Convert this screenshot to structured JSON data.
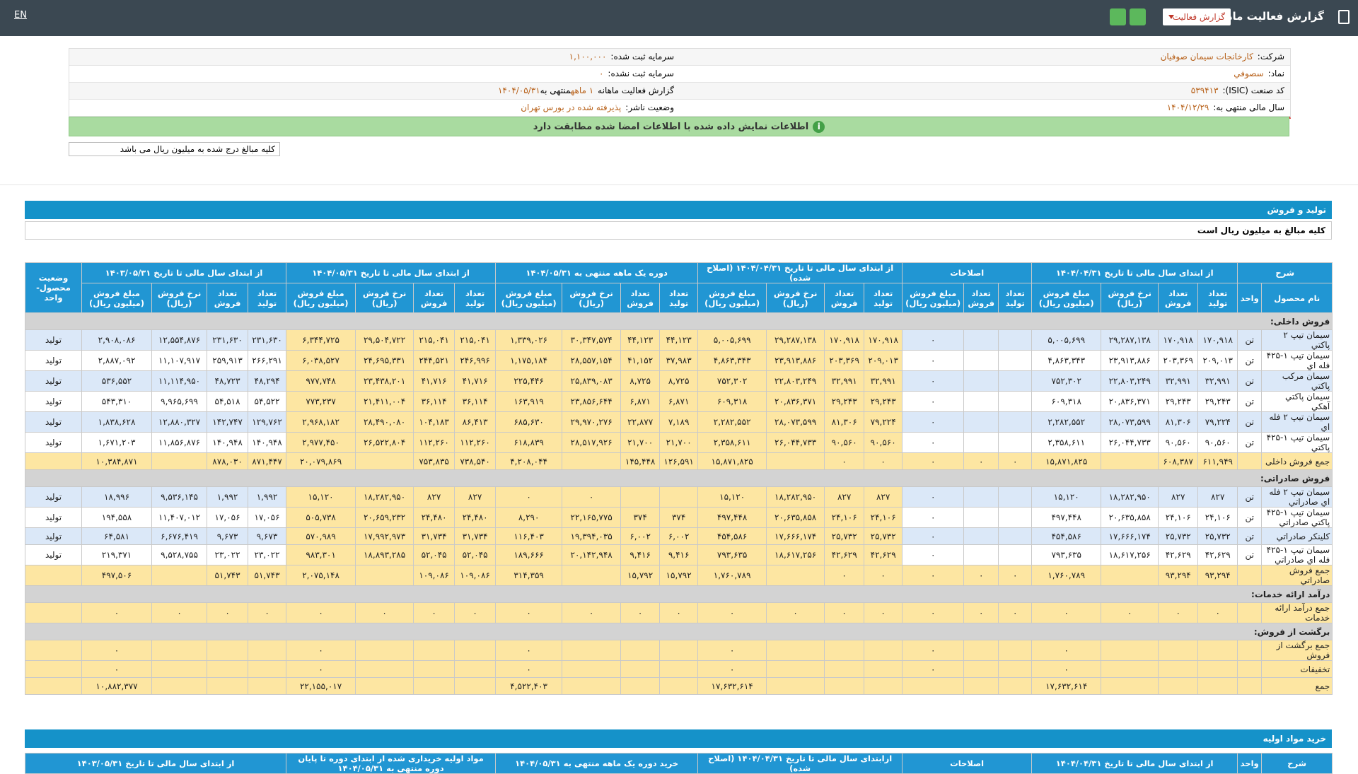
{
  "header": {
    "title": "گزارش فعالیت ماهانه",
    "dropdown": "گزارش فعالیت",
    "language": "EN"
  },
  "info": {
    "company_label": "شرکت:",
    "company": "کارخانجات سیمان صوفیان",
    "capital_label": "سرمایه ثبت شده:",
    "capital": "۱,۱۰۰,۰۰۰",
    "symbol_label": "نماد:",
    "symbol": "سصوفي",
    "unregistered_label": "سرمایه ثبت نشده:",
    "unregistered": "۰",
    "isic_label": "کد صنعت (ISIC):",
    "isic": "۵۳۹۴۱۳",
    "report_label": "گزارش فعالیت ماهانه",
    "report_period": "۱ ماهه",
    "ending_label": "منتهی به",
    "report_date": "۱۴۰۴/۰۵/۳۱",
    "fiscal_label": "سال مالی منتهی به:",
    "fiscal_end": "۱۴۰۴/۱۲/۲۹",
    "status_label": "وضعیت ناشر:",
    "status": "پذیرفته شده در بورس تهران"
  },
  "notice": "اطلاعات نمایش داده شده با اطلاعات امضا شده مطابقت دارد",
  "unit_note": "کلیه مبالغ درج شده به میلیون ریال می باشد",
  "sales": {
    "title": "تولید و فروش",
    "subtitle": "کلیه مبالغ به میلیون ریال است",
    "head_top": [
      "شرح",
      "از ابتدای سال مالی تا تاریخ ۱۴۰۴/۰۴/۳۱",
      "اصلاحات",
      "از ابتدای سال مالی تا تاریخ ۱۴۰۴/۰۴/۳۱ (اصلاح شده)",
      "دوره یک ماهه منتهی به ۱۴۰۴/۰۵/۳۱",
      "از ابتدای سال مالی تا تاریخ ۱۴۰۴/۰۵/۳۱",
      "از ابتدای سال مالی تا تاریخ ۱۴۰۳/۰۵/۳۱",
      "وضعیت محصول-واحد"
    ],
    "head_sub": [
      "نام محصول",
      "واحد",
      "تعداد تولید",
      "تعداد فروش",
      "نرخ فروش (ریال)",
      "مبلغ فروش (میلیون ریال)",
      "تعداد تولید",
      "تعداد فروش",
      "مبلغ فروش (میلیون ریال)",
      "تعداد تولید",
      "تعداد فروش",
      "نرخ فروش (ریال)",
      "مبلغ فروش (میلیون ریال)",
      "تعداد تولید",
      "تعداد فروش",
      "نرخ فروش (ریال)",
      "مبلغ فروش (میلیون ریال)",
      "تعداد تولید",
      "تعداد فروش",
      "نرخ فروش (ریال)",
      "مبلغ فروش (میلیون ریال)",
      "تعداد تولید",
      "تعداد فروش",
      "نرخ فروش (ریال)",
      "مبلغ فروش (میلیون ریال)"
    ],
    "rows": [
      {
        "section": "فروش داخلی:"
      },
      {
        "cells": [
          "سیمان تیپ ۲ پاکتي",
          "تن",
          "۱۷۰,۹۱۸",
          "۱۷۰,۹۱۸",
          "۲۹,۲۸۷,۱۳۸",
          "۵,۰۰۵,۶۹۹",
          null,
          null,
          "۰",
          "۱۷۰,۹۱۸",
          "۱۷۰,۹۱۸",
          "۲۹,۲۸۷,۱۳۸",
          "۵,۰۰۵,۶۹۹",
          "۴۴,۱۲۳",
          "۴۴,۱۲۳",
          "۳۰,۳۴۷,۵۷۴",
          "۱,۳۳۹,۰۲۶",
          "۲۱۵,۰۴۱",
          "۲۱۵,۰۴۱",
          "۲۹,۵۰۴,۷۲۲",
          "۶,۳۴۴,۷۲۵",
          "۲۳۱,۶۳۰",
          "۲۳۱,۶۳۰",
          "۱۲,۵۵۴,۸۷۶",
          "۲,۹۰۸,۰۸۶",
          "تولید"
        ]
      },
      {
        "cells": [
          "سیمان تیپ ۱-۴۲۵ فله اي",
          "تن",
          "۲۰۹,۰۱۳",
          "۲۰۳,۳۶۹",
          "۲۳,۹۱۳,۸۸۶",
          "۴,۸۶۳,۳۴۳",
          null,
          null,
          "۰",
          "۲۰۹,۰۱۳",
          "۲۰۳,۳۶۹",
          "۲۳,۹۱۳,۸۸۶",
          "۴,۸۶۳,۳۴۳",
          "۳۷,۹۸۳",
          "۴۱,۱۵۲",
          "۲۸,۵۵۷,۱۵۴",
          "۱,۱۷۵,۱۸۴",
          "۲۴۶,۹۹۶",
          "۲۴۴,۵۲۱",
          "۲۴,۶۹۵,۳۳۱",
          "۶,۰۳۸,۵۲۷",
          "۲۶۶,۲۹۱",
          "۲۵۹,۹۱۳",
          "۱۱,۱۰۷,۹۱۷",
          "۲,۸۸۷,۰۹۲",
          "تولید"
        ]
      },
      {
        "cells": [
          "سیمان مرکب پاکتي",
          "تن",
          "۳۲,۹۹۱",
          "۳۲,۹۹۱",
          "۲۲,۸۰۳,۲۴۹",
          "۷۵۲,۳۰۲",
          null,
          null,
          "۰",
          "۳۲,۹۹۱",
          "۳۲,۹۹۱",
          "۲۲,۸۰۳,۲۴۹",
          "۷۵۲,۳۰۲",
          "۸,۷۲۵",
          "۸,۷۲۵",
          "۲۵,۸۳۹,۰۸۳",
          "۲۲۵,۴۴۶",
          "۴۱,۷۱۶",
          "۴۱,۷۱۶",
          "۲۳,۴۳۸,۲۰۱",
          "۹۷۷,۷۴۸",
          "۴۸,۲۹۴",
          "۴۸,۷۲۳",
          "۱۱,۱۱۴,۹۵۰",
          "۵۳۶,۵۵۲",
          "تولید"
        ]
      },
      {
        "cells": [
          "سیمان پاکتي آهکي",
          "تن",
          "۲۹,۲۴۳",
          "۲۹,۲۴۳",
          "۲۰,۸۳۶,۳۷۱",
          "۶۰۹,۳۱۸",
          null,
          null,
          "۰",
          "۲۹,۲۴۳",
          "۲۹,۲۴۳",
          "۲۰,۸۳۶,۳۷۱",
          "۶۰۹,۳۱۸",
          "۶,۸۷۱",
          "۶,۸۷۱",
          "۲۳,۸۵۶,۶۴۴",
          "۱۶۳,۹۱۹",
          "۳۶,۱۱۴",
          "۳۶,۱۱۴",
          "۲۱,۴۱۱,۰۰۴",
          "۷۷۳,۲۳۷",
          "۵۴,۵۲۲",
          "۵۴,۵۱۸",
          "۹,۹۶۵,۶۹۹",
          "۵۴۳,۳۱۰",
          "تولید"
        ]
      },
      {
        "cells": [
          "سیمان تیپ ۲ فله اي",
          "تن",
          "۷۹,۲۲۴",
          "۸۱,۳۰۶",
          "۲۸,۰۷۳,۵۹۹",
          "۲,۲۸۲,۵۵۲",
          null,
          null,
          "۰",
          "۷۹,۲۲۴",
          "۸۱,۳۰۶",
          "۲۸,۰۷۳,۵۹۹",
          "۲,۲۸۲,۵۵۲",
          "۷,۱۸۹",
          "۲۲,۸۷۷",
          "۲۹,۹۷۰,۲۷۶",
          "۶۸۵,۶۳۰",
          "۸۶,۴۱۳",
          "۱۰۴,۱۸۳",
          "۲۸,۴۹۰,۰۸۰",
          "۲,۹۶۸,۱۸۲",
          "۱۲۹,۷۶۲",
          "۱۴۲,۷۴۷",
          "۱۲,۸۸۰,۳۲۷",
          "۱,۸۳۸,۶۲۸",
          "تولید"
        ]
      },
      {
        "cells": [
          "سیمان تیپ ۱-۴۲۵ پاکتي",
          "تن",
          "۹۰,۵۶۰",
          "۹۰,۵۶۰",
          "۲۶,۰۴۴,۷۳۳",
          "۲,۳۵۸,۶۱۱",
          null,
          null,
          "۰",
          "۹۰,۵۶۰",
          "۹۰,۵۶۰",
          "۲۶,۰۴۴,۷۳۳",
          "۲,۳۵۸,۶۱۱",
          "۲۱,۷۰۰",
          "۲۱,۷۰۰",
          "۲۸,۵۱۷,۹۲۶",
          "۶۱۸,۸۳۹",
          "۱۱۲,۲۶۰",
          "۱۱۲,۲۶۰",
          "۲۶,۵۲۲,۸۰۴",
          "۲,۹۷۷,۴۵۰",
          "۱۴۰,۹۴۸",
          "۱۴۰,۹۴۸",
          "۱۱,۸۵۶,۸۷۶",
          "۱,۶۷۱,۲۰۳",
          "تولید"
        ]
      },
      {
        "cells": [
          "جمع فروش داخلی",
          null,
          "۶۱۱,۹۴۹",
          "۶۰۸,۳۸۷",
          null,
          "۱۵,۸۷۱,۸۲۵",
          "۰",
          "۰",
          "۰",
          "۰",
          "۰",
          null,
          "۱۵,۸۷۱,۸۲۵",
          "۱۲۶,۵۹۱",
          "۱۴۵,۴۴۸",
          null,
          "۴,۲۰۸,۰۴۴",
          "۷۳۸,۵۴۰",
          "۷۵۳,۸۳۵",
          null,
          "۲۰,۰۷۹,۸۶۹",
          "۸۷۱,۴۴۷",
          "۸۷۸,۰۳۰",
          null,
          "۱۰,۳۸۴,۸۷۱",
          null
        ]
      },
      {
        "section": "فروش صادراتی:"
      },
      {
        "cells": [
          "سیمان تیپ ۲ فله اي صادراتي",
          "تن",
          "۸۲۷",
          "۸۲۷",
          "۱۸,۲۸۲,۹۵۰",
          "۱۵,۱۲۰",
          null,
          null,
          "۰",
          "۸۲۷",
          "۸۲۷",
          "۱۸,۲۸۲,۹۵۰",
          "۱۵,۱۲۰",
          null,
          null,
          "۰",
          "۰",
          "۸۲۷",
          "۸۲۷",
          "۱۸,۲۸۲,۹۵۰",
          "۱۵,۱۲۰",
          "۱,۹۹۲",
          "۱,۹۹۲",
          "۹,۵۳۶,۱۴۵",
          "۱۸,۹۹۶",
          "تولید"
        ]
      },
      {
        "cells": [
          "سیمان تیپ ۱-۴۲۵ پاکتي صادراتي",
          "تن",
          "۲۴,۱۰۶",
          "۲۴,۱۰۶",
          "۲۰,۶۳۵,۸۵۸",
          "۴۹۷,۴۴۸",
          null,
          null,
          "۰",
          "۲۴,۱۰۶",
          "۲۴,۱۰۶",
          "۲۰,۶۳۵,۸۵۸",
          "۴۹۷,۴۴۸",
          "۳۷۴",
          "۳۷۴",
          "۲۲,۱۶۵,۷۷۵",
          "۸,۲۹۰",
          "۲۴,۴۸۰",
          "۲۴,۴۸۰",
          "۲۰,۶۵۹,۲۳۲",
          "۵۰۵,۷۳۸",
          "۱۷,۰۵۶",
          "۱۷,۰۵۶",
          "۱۱,۴۰۷,۰۱۲",
          "۱۹۴,۵۵۸",
          "تولید"
        ]
      },
      {
        "cells": [
          "کلینکر صادراتي",
          "تن",
          "۲۵,۷۳۲",
          "۲۵,۷۳۲",
          "۱۷,۶۶۶,۱۷۴",
          "۴۵۴,۵۸۶",
          null,
          null,
          "۰",
          "۲۵,۷۳۲",
          "۲۵,۷۳۲",
          "۱۷,۶۶۶,۱۷۴",
          "۴۵۴,۵۸۶",
          "۶,۰۰۲",
          "۶,۰۰۲",
          "۱۹,۳۹۴,۰۳۵",
          "۱۱۶,۴۰۳",
          "۳۱,۷۳۴",
          "۳۱,۷۳۴",
          "۱۷,۹۹۲,۹۷۳",
          "۵۷۰,۹۸۹",
          "۹,۶۷۳",
          "۹,۶۷۳",
          "۶,۶۷۶,۴۱۹",
          "۶۴,۵۸۱",
          "تولید"
        ]
      },
      {
        "cells": [
          "سیمان تیپ ۱-۴۲۵ فله اي صادراتي",
          "تن",
          "۴۲,۶۲۹",
          "۴۲,۶۲۹",
          "۱۸,۶۱۷,۲۵۶",
          "۷۹۳,۶۳۵",
          null,
          null,
          "۰",
          "۴۲,۶۲۹",
          "۴۲,۶۲۹",
          "۱۸,۶۱۷,۲۵۶",
          "۷۹۳,۶۳۵",
          "۹,۴۱۶",
          "۹,۴۱۶",
          "۲۰,۱۴۲,۹۴۸",
          "۱۸۹,۶۶۶",
          "۵۲,۰۴۵",
          "۵۲,۰۴۵",
          "۱۸,۸۹۳,۲۸۵",
          "۹۸۳,۳۰۱",
          "۲۳,۰۲۲",
          "۲۳,۰۲۲",
          "۹,۵۲۸,۷۵۵",
          "۲۱۹,۳۷۱",
          "تولید"
        ]
      },
      {
        "cells": [
          "جمع فروش صادراتي",
          null,
          "۹۳,۲۹۴",
          "۹۳,۲۹۴",
          null,
          "۱,۷۶۰,۷۸۹",
          "۰",
          "۰",
          "۰",
          "۰",
          "۰",
          null,
          "۱,۷۶۰,۷۸۹",
          "۱۵,۷۹۲",
          "۱۵,۷۹۲",
          null,
          "۳۱۴,۳۵۹",
          "۱۰۹,۰۸۶",
          "۱۰۹,۰۸۶",
          null,
          "۲,۰۷۵,۱۴۸",
          "۵۱,۷۴۳",
          "۵۱,۷۴۳",
          null,
          "۴۹۷,۵۰۶",
          null
        ]
      },
      {
        "section": "درآمد ارائه خدمات:"
      },
      {
        "cells": [
          "جمع درآمد ارائه خدمات",
          null,
          "۰",
          "۰",
          "۰",
          "۰",
          "۰",
          "۰",
          "۰",
          "۰",
          "۰",
          "۰",
          "۰",
          "۰",
          "۰",
          "۰",
          "۰",
          "۰",
          "۰",
          "۰",
          "۰",
          "۰",
          "۰",
          "۰",
          "۰",
          null
        ]
      },
      {
        "section": "برگشت از فروش:"
      },
      {
        "cells": [
          "جمع برگشت از فروش",
          null,
          null,
          null,
          null,
          "۰",
          null,
          null,
          "۰",
          null,
          null,
          null,
          "۰",
          null,
          null,
          null,
          "۰",
          null,
          null,
          null,
          "۰",
          null,
          null,
          null,
          "۰",
          null
        ]
      },
      {
        "cells": [
          "تخفیفات",
          null,
          null,
          null,
          null,
          "۰",
          null,
          null,
          "۰",
          null,
          null,
          null,
          "۰",
          null,
          null,
          null,
          "۰",
          null,
          null,
          null,
          "۰",
          null,
          null,
          null,
          "۰",
          null
        ]
      },
      {
        "cells": [
          "جمع",
          null,
          null,
          null,
          null,
          "۱۷,۶۳۲,۶۱۴",
          null,
          null,
          null,
          null,
          null,
          null,
          "۱۷,۶۳۲,۶۱۴",
          null,
          null,
          null,
          "۴,۵۲۲,۴۰۳",
          null,
          null,
          null,
          "۲۲,۱۵۵,۰۱۷",
          null,
          null,
          null,
          "۱۰,۸۸۲,۳۷۷",
          null
        ]
      }
    ]
  },
  "purchase": {
    "title": "خرید مواد اولیه",
    "head_top": [
      "شرح",
      "واحد",
      "از ابتدای سال مالی تا تاریخ ۱۴۰۴/۰۴/۳۱",
      "اصلاحات",
      "ازابتدای سال مالی تا تاریخ ۱۴۰۴/۰۴/۳۱ (اصلاح شده)",
      "خرید دوره یک ماهه منتهی به ۱۴۰۴/۰۵/۳۱",
      "مواد اولیه خریداری شده از ابتدای دوره تا پایان دوره منتهی به ۱۴۰۴/۰۵/۳۱",
      "از ابتدای سال مالی تا تاریخ ۱۴۰۳/۰۵/۳۱"
    ]
  }
}
